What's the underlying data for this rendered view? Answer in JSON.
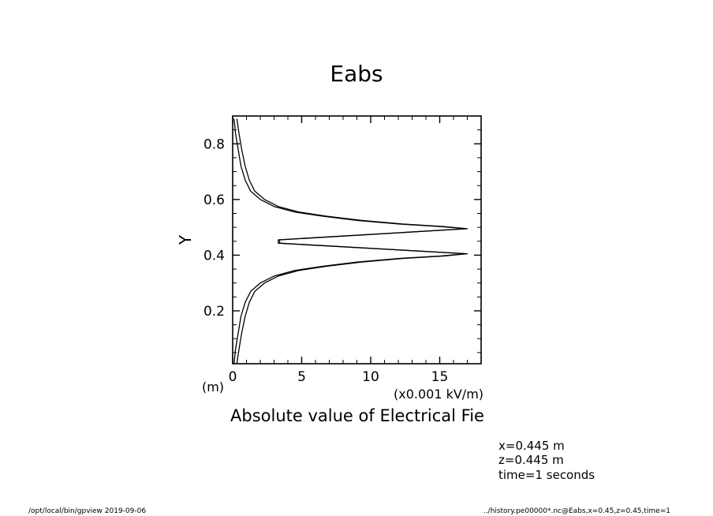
{
  "chart_data": {
    "type": "line",
    "title": "Eabs",
    "xlabel": "Absolute value of Electrical Fie",
    "xunit": "(x0.001 kV/m)",
    "ylabel": "Y",
    "yunit": "(m)",
    "xlim": [
      0,
      18
    ],
    "ylim": [
      0.01,
      0.9
    ],
    "xticks": [
      {
        "value": 0,
        "label": "0"
      },
      {
        "value": 5,
        "label": "5"
      },
      {
        "value": 10,
        "label": "10"
      },
      {
        "value": 15,
        "label": "15"
      }
    ],
    "yticks": [
      {
        "value": 0.2,
        "label": "0.2"
      },
      {
        "value": 0.4,
        "label": "0.4"
      },
      {
        "value": 0.6,
        "label": "0.6"
      },
      {
        "value": 0.8,
        "label": "0.8"
      }
    ],
    "series": [
      {
        "x": [
          0.1,
          0.2,
          0.4,
          0.6,
          0.9,
          1.3,
          2.0,
          3.0,
          4.5,
          6.5,
          9.0,
          12.0,
          15.0,
          16.9,
          3.3,
          3.3,
          16.9,
          15.0,
          12.0,
          9.0,
          6.5,
          4.5,
          3.0,
          2.0,
          1.3,
          0.9,
          0.6,
          0.4,
          0.2,
          0.1
        ],
        "y": [
          0.01,
          0.06,
          0.12,
          0.18,
          0.23,
          0.27,
          0.3,
          0.325,
          0.345,
          0.36,
          0.375,
          0.388,
          0.397,
          0.405,
          0.443,
          0.455,
          0.495,
          0.503,
          0.512,
          0.525,
          0.54,
          0.555,
          0.575,
          0.6,
          0.63,
          0.67,
          0.72,
          0.78,
          0.84,
          0.89
        ]
      },
      {
        "x": [
          0.3,
          0.45,
          0.65,
          0.9,
          1.2,
          1.6,
          2.3,
          3.3,
          4.8,
          6.8,
          9.3,
          12.3,
          15.3,
          17.0,
          3.4,
          3.4,
          17.0,
          15.3,
          12.3,
          9.3,
          6.8,
          4.8,
          3.3,
          2.3,
          1.6,
          1.2,
          0.9,
          0.65,
          0.45,
          0.3
        ],
        "y": [
          0.01,
          0.06,
          0.12,
          0.18,
          0.23,
          0.27,
          0.3,
          0.325,
          0.345,
          0.36,
          0.375,
          0.388,
          0.397,
          0.405,
          0.443,
          0.455,
          0.495,
          0.503,
          0.512,
          0.525,
          0.54,
          0.555,
          0.575,
          0.6,
          0.63,
          0.67,
          0.72,
          0.78,
          0.84,
          0.89
        ]
      }
    ]
  },
  "info": {
    "lines": [
      "x=0.445 m",
      "z=0.445 m",
      "time=1 seconds"
    ]
  },
  "footer": {
    "left": "/opt/local/bin/gpview  2019-09-06",
    "right": "../history.pe00000*.nc@Eabs,x=0.45,z=0.45,time=1"
  }
}
